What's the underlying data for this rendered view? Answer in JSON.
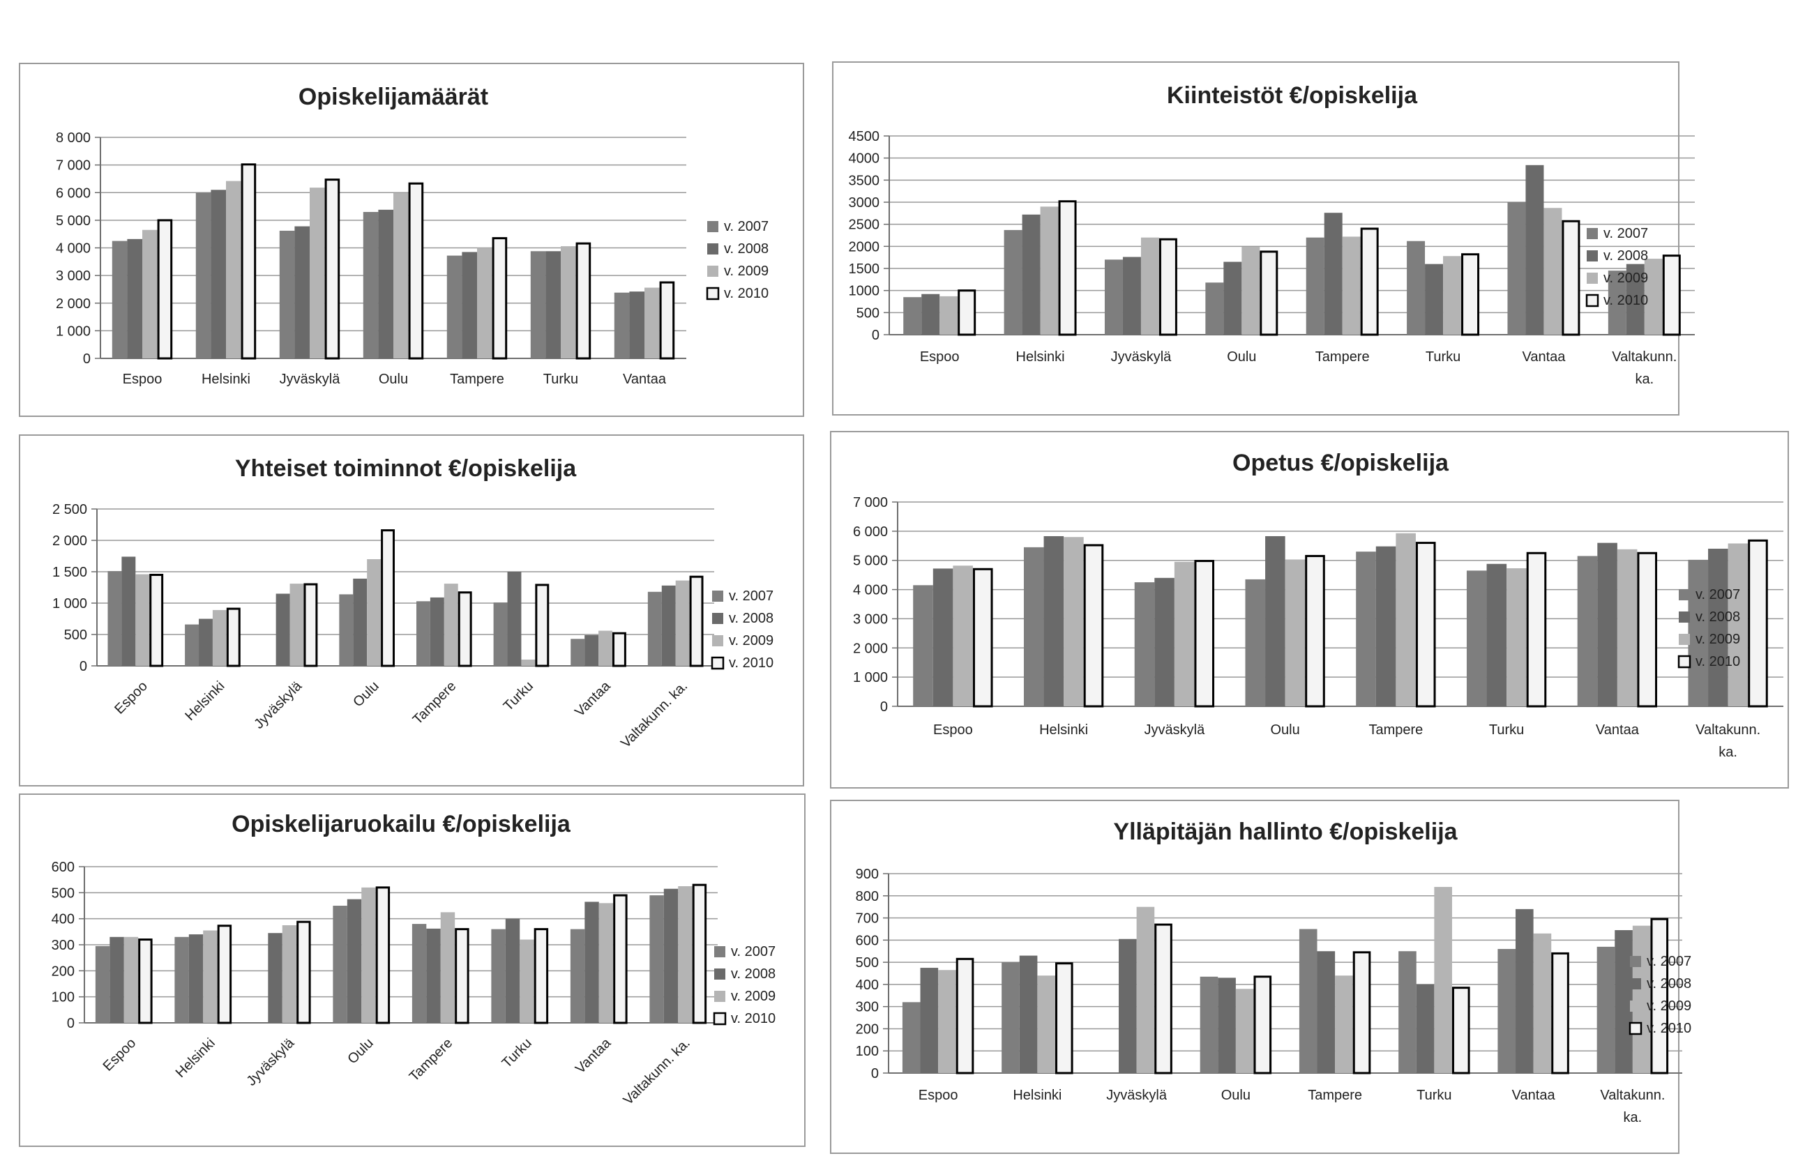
{
  "legend": [
    "v. 2007",
    "v. 2008",
    "v. 2009",
    "v. 2010"
  ],
  "colors": {
    "v2007": "#7e7e7e",
    "v2008": "#6a6a6a",
    "v2009": "#b4b4b4",
    "v2010": "#f4f4f4",
    "grid": "#999999",
    "axis": "#6e6e6e",
    "text": "#222222"
  },
  "chart_data": [
    {
      "type": "bar",
      "title": "Opiskelijamäärät",
      "categories": [
        "Espoo",
        "Helsinki",
        "Jyväskylä",
        "Oulu",
        "Tampere",
        "Turku",
        "Vantaa"
      ],
      "y_ticks": [
        "0",
        "1 000",
        "2 000",
        "3 000",
        "4 000",
        "5 000",
        "6 000",
        "7 000",
        "8 000"
      ],
      "ylim": [
        0,
        8000
      ],
      "series": [
        {
          "name": "v. 2007",
          "values": [
            4250,
            6000,
            4620,
            5300,
            3720,
            3880,
            2380
          ]
        },
        {
          "name": "v. 2008",
          "values": [
            4320,
            6100,
            4780,
            5380,
            3850,
            3880,
            2420
          ]
        },
        {
          "name": "v. 2009",
          "values": [
            4650,
            6420,
            6180,
            5980,
            4000,
            4060,
            2560
          ]
        },
        {
          "name": "v. 2010",
          "values": [
            5000,
            7020,
            6470,
            6330,
            4350,
            4160,
            2750
          ]
        }
      ]
    },
    {
      "type": "bar",
      "title": "Kiinteistöt €/opiskelija",
      "categories": [
        "Espoo",
        "Helsinki",
        "Jyväskylä",
        "Oulu",
        "Tampere",
        "Turku",
        "Vantaa",
        "Valtakunn. ka."
      ],
      "y_ticks": [
        "0",
        "500",
        "1000",
        "1500",
        "2000",
        "2500",
        "3000",
        "3500",
        "4000",
        "4500"
      ],
      "ylim": [
        0,
        4500
      ],
      "series": [
        {
          "name": "v. 2007",
          "values": [
            850,
            2370,
            1700,
            1180,
            2200,
            2120,
            3000,
            1450
          ]
        },
        {
          "name": "v. 2008",
          "values": [
            920,
            2720,
            1760,
            1650,
            2760,
            1600,
            3840,
            1600
          ]
        },
        {
          "name": "v. 2009",
          "values": [
            870,
            2900,
            2200,
            1990,
            2220,
            1780,
            2870,
            1720
          ]
        },
        {
          "name": "v. 2010",
          "values": [
            1000,
            3020,
            2160,
            1880,
            2400,
            1820,
            2570,
            1790
          ]
        }
      ]
    },
    {
      "type": "bar",
      "title": "Yhteiset toiminnot €/opiskelija",
      "categories": [
        "Espoo",
        "Helsinki",
        "Jyväskylä",
        "Oulu",
        "Tampere",
        "Turku",
        "Vantaa",
        "Valtakunn. ka."
      ],
      "y_ticks": [
        "0",
        "500",
        "1 000",
        "1 500",
        "2 000",
        "2 500"
      ],
      "ylim": [
        0,
        2500
      ],
      "series": [
        {
          "name": "v. 2007",
          "values": [
            1510,
            660,
            0,
            1140,
            1030,
            1010,
            430,
            1180
          ]
        },
        {
          "name": "v. 2008",
          "values": [
            1740,
            750,
            1150,
            1390,
            1090,
            1500,
            490,
            1280
          ]
        },
        {
          "name": "v. 2009",
          "values": [
            1460,
            890,
            1310,
            1700,
            1310,
            100,
            560,
            1360
          ]
        },
        {
          "name": "v. 2010",
          "values": [
            1450,
            910,
            1300,
            2160,
            1170,
            1290,
            520,
            1420
          ]
        }
      ]
    },
    {
      "type": "bar",
      "title": "Opetus €/opiskelija",
      "categories": [
        "Espoo",
        "Helsinki",
        "Jyväskylä",
        "Oulu",
        "Tampere",
        "Turku",
        "Vantaa",
        "Valtakunn. ka."
      ],
      "y_ticks": [
        "0",
        "1 000",
        "2 000",
        "3 000",
        "4 000",
        "5 000",
        "6 000",
        "7 000"
      ],
      "ylim": [
        0,
        7000
      ],
      "series": [
        {
          "name": "v. 2007",
          "values": [
            4150,
            5450,
            4250,
            4350,
            5300,
            4650,
            5150,
            5020
          ]
        },
        {
          "name": "v. 2008",
          "values": [
            4720,
            5830,
            4400,
            5830,
            5480,
            4880,
            5600,
            5400
          ]
        },
        {
          "name": "v. 2009",
          "values": [
            4820,
            5800,
            4950,
            5030,
            5930,
            4730,
            5380,
            5580
          ]
        },
        {
          "name": "v. 2010",
          "values": [
            4700,
            5520,
            4980,
            5150,
            5600,
            5250,
            5250,
            5680
          ]
        }
      ]
    },
    {
      "type": "bar",
      "title": "Opiskelijaruokailu €/opiskelija",
      "categories": [
        "Espoo",
        "Helsinki",
        "Jyväskylä",
        "Oulu",
        "Tampere",
        "Turku",
        "Vantaa",
        "Valtakunn. ka."
      ],
      "y_ticks": [
        "0",
        "100",
        "200",
        "300",
        "400",
        "500",
        "600"
      ],
      "ylim": [
        0,
        600
      ],
      "series": [
        {
          "name": "v. 2007",
          "values": [
            295,
            330,
            0,
            450,
            380,
            360,
            360,
            490
          ]
        },
        {
          "name": "v. 2008",
          "values": [
            330,
            340,
            345,
            475,
            362,
            400,
            465,
            515
          ]
        },
        {
          "name": "v. 2009",
          "values": [
            330,
            355,
            375,
            520,
            425,
            320,
            460,
            525
          ]
        },
        {
          "name": "v. 2010",
          "values": [
            320,
            373,
            388,
            520,
            360,
            360,
            490,
            530
          ]
        }
      ]
    },
    {
      "type": "bar",
      "title": "Ylläpitäjän hallinto €/opiskelija",
      "categories": [
        "Espoo",
        "Helsinki",
        "Jyväskylä",
        "Oulu",
        "Tampere",
        "Turku",
        "Vantaa",
        "Valtakunn. ka."
      ],
      "y_ticks": [
        "0",
        "100",
        "200",
        "300",
        "400",
        "500",
        "600",
        "700",
        "800",
        "900"
      ],
      "ylim": [
        0,
        900
      ],
      "series": [
        {
          "name": "v. 2007",
          "values": [
            320,
            500,
            0,
            435,
            650,
            550,
            560,
            570
          ]
        },
        {
          "name": "v. 2008",
          "values": [
            475,
            530,
            605,
            430,
            550,
            400,
            740,
            645
          ]
        },
        {
          "name": "v. 2009",
          "values": [
            465,
            440,
            750,
            380,
            440,
            840,
            630,
            665
          ]
        },
        {
          "name": "v. 2010",
          "values": [
            515,
            495,
            670,
            435,
            545,
            385,
            540,
            695
          ]
        }
      ]
    }
  ]
}
